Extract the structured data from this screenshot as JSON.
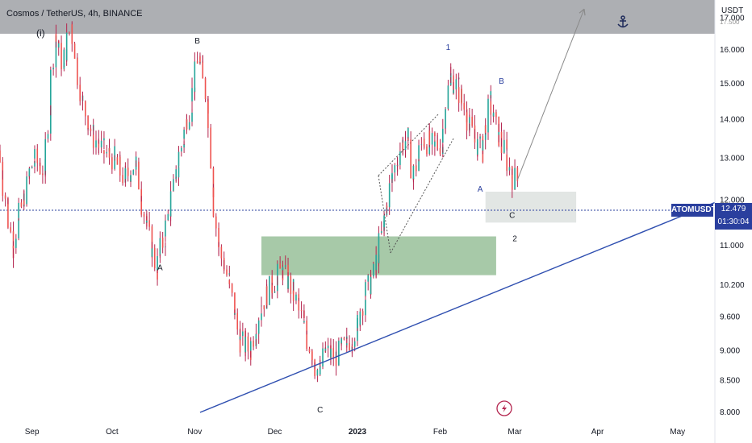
{
  "header": {
    "title": "Cosmos / TetherUS, 4h, BINANCE",
    "main_wave_label": "(i)"
  },
  "price_axis": {
    "unit": "USDT",
    "ticks": [
      "17.000",
      "16.000",
      "15.000",
      "14.000",
      "13.000",
      "12.000",
      "11.000",
      "10.200",
      "9.600",
      "9.000",
      "8.500",
      "8.000"
    ],
    "top_partial_tick": "17.500"
  },
  "time_axis": {
    "ticks": [
      "Sep",
      "Oct",
      "Nov",
      "Dec",
      "2023",
      "Feb",
      "Mar",
      "Apr",
      "May"
    ]
  },
  "last_price": {
    "symbol": "ATOMUSDT",
    "value": "12.479",
    "countdown": "01:30:04"
  },
  "wave_labels": [
    "B",
    "A",
    "C",
    "1",
    "B",
    "A",
    "C",
    "2"
  ],
  "colors": {
    "up": "#26a69a",
    "down": "#ef5350",
    "candle_mixed": "#b4254f",
    "resistance_zone": "#9fa1a6",
    "demand_zone": "#9dc39f",
    "target_zone": "#dfe3e1",
    "trendline": "#2f4fb0",
    "price_tag": "#2a3f9e"
  },
  "chart_data": {
    "type": "line",
    "title": "Cosmos / TetherUS, 4h, BINANCE",
    "xlabel": "",
    "ylabel": "USDT",
    "ylim": [
      8.0,
      17.6
    ],
    "y_scale": "log",
    "x_range": [
      "2022-08-20",
      "2023-05-15"
    ],
    "series": [
      {
        "name": "ATOMUSDT",
        "x": [
          "2022-08-20",
          "2022-08-25",
          "2022-08-29",
          "2022-09-02",
          "2022-09-06",
          "2022-09-10",
          "2022-09-13",
          "2022-09-16",
          "2022-09-20",
          "2022-09-24",
          "2022-09-28",
          "2022-10-02",
          "2022-10-06",
          "2022-10-10",
          "2022-10-14",
          "2022-10-18",
          "2022-10-21",
          "2022-10-25",
          "2022-10-28",
          "2022-10-31",
          "2022-11-03",
          "2022-11-06",
          "2022-11-08",
          "2022-11-10",
          "2022-11-14",
          "2022-11-18",
          "2022-11-22",
          "2022-11-26",
          "2022-11-30",
          "2022-12-04",
          "2022-12-08",
          "2022-12-12",
          "2022-12-15",
          "2022-12-18",
          "2022-12-20",
          "2022-12-24",
          "2022-12-28",
          "2023-01-01",
          "2023-01-04",
          "2023-01-08",
          "2023-01-11",
          "2023-01-14",
          "2023-01-18",
          "2023-01-20",
          "2023-01-22",
          "2023-01-26",
          "2023-01-30",
          "2023-02-02",
          "2023-02-05",
          "2023-02-08",
          "2023-02-11",
          "2023-02-14",
          "2023-02-17",
          "2023-02-20",
          "2023-02-23",
          "2023-02-26",
          "2023-02-28",
          "2023-03-02"
        ],
        "values": [
          13.2,
          11.0,
          12.0,
          13.0,
          12.7,
          16.5,
          15.5,
          16.8,
          14.5,
          13.6,
          13.2,
          13.0,
          12.5,
          12.9,
          11.5,
          10.5,
          11.2,
          12.5,
          13.5,
          14.5,
          15.8,
          14.5,
          12.3,
          11.0,
          10.3,
          9.2,
          9.0,
          9.8,
          10.2,
          10.5,
          10.1,
          9.5,
          9.0,
          8.6,
          9.0,
          8.9,
          9.1,
          9.4,
          10.0,
          10.5,
          11.4,
          12.5,
          13.4,
          13.5,
          12.5,
          13.5,
          13.3,
          13.4,
          15.2,
          14.9,
          14.2,
          13.5,
          13.2,
          14.5,
          13.6,
          13.1,
          12.6,
          12.48
        ]
      },
      {
        "name": "Projection",
        "x": [
          "2023-03-02",
          "2023-03-27"
        ],
        "values": [
          12.48,
          17.3
        ]
      },
      {
        "name": "Trendline",
        "x": [
          "2022-11-03",
          "2023-05-15"
        ],
        "values": [
          8.0,
          11.95
        ]
      }
    ],
    "zones": [
      {
        "name": "resistance",
        "from": "2022-08-20",
        "to": "2023-05-15",
        "low": 16.5,
        "high": 17.6
      },
      {
        "name": "demand",
        "from": "2022-11-26",
        "to": "2023-02-22",
        "low": 10.4,
        "high": 11.2
      },
      {
        "name": "target",
        "from": "2023-02-18",
        "to": "2023-03-24",
        "low": 11.5,
        "high": 12.2
      }
    ],
    "annotations": [
      {
        "text": "(i)",
        "x": "2022-08-29",
        "y": 17.3
      },
      {
        "text": "B",
        "x": "2022-11-02",
        "y": 16.2
      },
      {
        "text": "A",
        "x": "2022-10-19",
        "y": 10.5
      },
      {
        "text": "C",
        "x": "2022-12-18",
        "y": 8.0
      },
      {
        "text": "1",
        "x": "2023-02-04",
        "y": 16.0
      },
      {
        "text": "B",
        "x": "2023-02-24",
        "y": 15.0
      },
      {
        "text": "A",
        "x": "2023-02-16",
        "y": 12.2
      },
      {
        "text": "C",
        "x": "2023-02-28",
        "y": 11.6
      },
      {
        "text": "2",
        "x": "2023-03-01",
        "y": 11.1
      }
    ]
  }
}
